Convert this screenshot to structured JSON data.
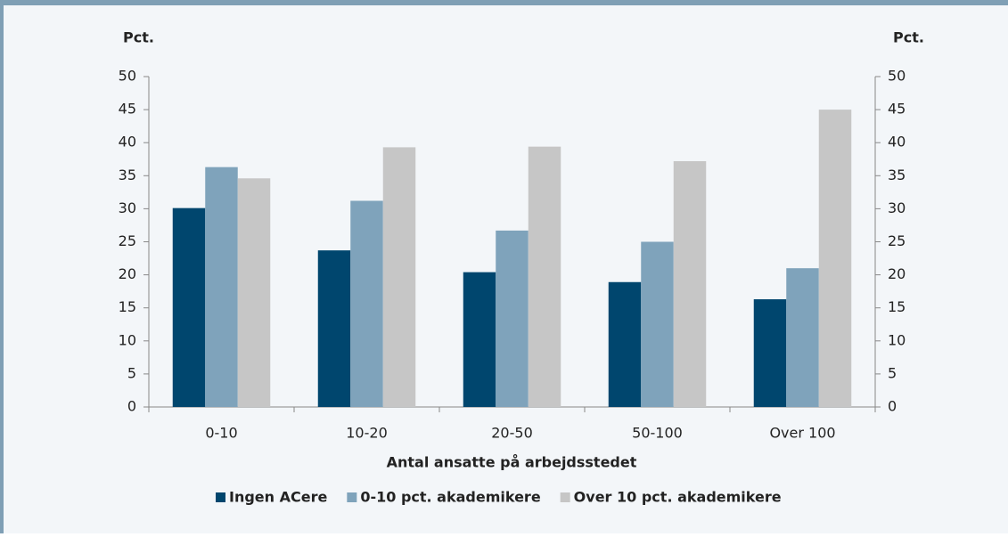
{
  "chart_data": {
    "type": "bar",
    "ylabel": "Pct.",
    "y2label": "Pct.",
    "xlabel": "Antal ansatte på arbejdsstedet",
    "categories": [
      "0-10",
      "10-20",
      "20-50",
      "50-100",
      "Over 100"
    ],
    "series": [
      {
        "name": "Ingen ACere",
        "color": "#00466e",
        "values": [
          30.1,
          23.7,
          20.4,
          18.9,
          16.3
        ]
      },
      {
        "name": "0-10 pct. akademikere",
        "color": "#7fa3bb",
        "values": [
          36.3,
          31.2,
          26.7,
          25.0,
          21.0
        ]
      },
      {
        "name": "Over 10 pct. akademikere",
        "color": "#c6c6c6",
        "values": [
          34.6,
          39.3,
          39.4,
          37.2,
          45.0
        ]
      }
    ],
    "ylim": [
      0,
      50
    ],
    "yticks": [
      0,
      5,
      10,
      15,
      20,
      25,
      30,
      35,
      40,
      45,
      50
    ],
    "y2lim": [
      0,
      50
    ],
    "y2ticks": [
      0,
      5,
      10,
      15,
      20,
      25,
      30,
      35,
      40,
      45,
      50
    ],
    "legend": "bottom"
  }
}
